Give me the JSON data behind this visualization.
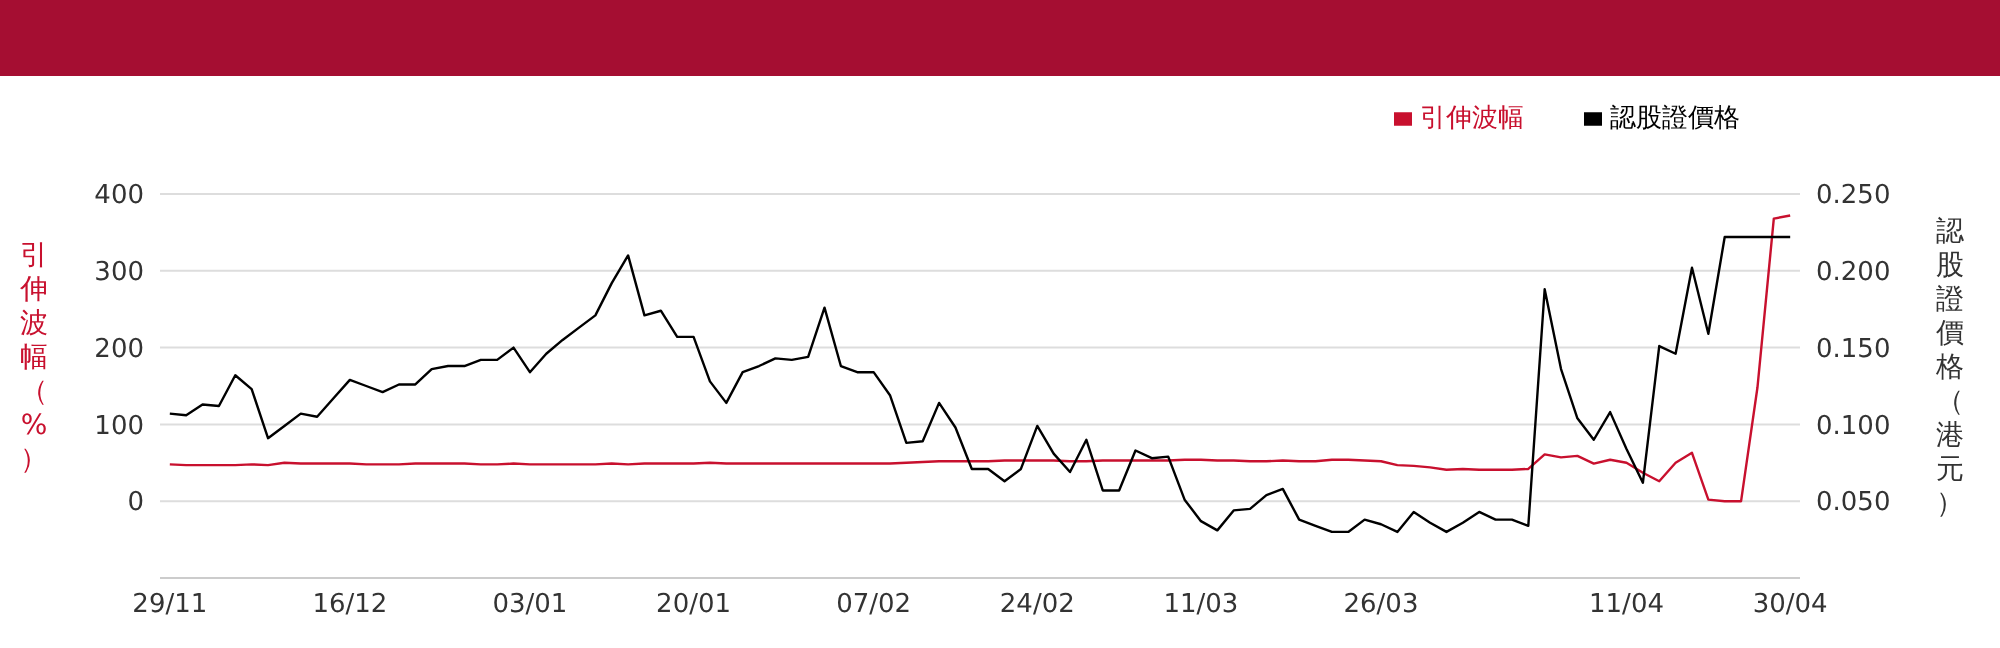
{
  "chart_data": {
    "type": "line",
    "ylabel": "引伸波幅（%）",
    "y2label": "認股證價格（港元）",
    "categories": [
      "29/11",
      null,
      null,
      null,
      null,
      null,
      null,
      null,
      null,
      null,
      null,
      "16/12",
      null,
      null,
      null,
      null,
      null,
      null,
      null,
      null,
      null,
      null,
      "03/01",
      null,
      null,
      null,
      null,
      null,
      null,
      null,
      null,
      null,
      "20/01",
      null,
      null,
      null,
      null,
      null,
      null,
      null,
      null,
      null,
      null,
      "07/02",
      null,
      null,
      null,
      null,
      null,
      null,
      null,
      null,
      null,
      "24/02",
      null,
      null,
      null,
      null,
      null,
      null,
      null,
      null,
      null,
      "11/03",
      null,
      null,
      null,
      null,
      null,
      null,
      null,
      null,
      null,
      null,
      "26/03",
      null,
      null,
      null,
      null,
      null,
      null,
      null,
      null,
      null,
      null,
      null,
      null,
      null,
      null,
      "11/04",
      null,
      null,
      null,
      null,
      null,
      null,
      null,
      null,
      null,
      "30/04"
    ],
    "series": [
      {
        "name": "引伸波幅",
        "color": "#c8102e",
        "values": [
          48,
          47,
          47,
          47,
          47,
          48,
          47,
          50,
          49,
          49,
          49,
          49,
          48,
          48,
          48,
          49,
          49,
          49,
          49,
          48,
          48,
          49,
          48,
          48,
          48,
          48,
          48,
          49,
          48,
          49,
          49,
          49,
          49,
          50,
          49,
          49,
          49,
          49,
          49,
          49,
          49,
          49,
          49,
          49,
          49,
          50,
          51,
          52,
          52,
          52,
          52,
          53,
          53,
          53,
          53,
          52,
          52,
          53,
          53,
          53,
          53,
          53,
          54,
          54,
          53,
          53,
          52,
          52,
          53,
          52,
          52,
          54,
          54,
          53,
          52,
          47,
          46,
          44,
          41,
          42,
          41,
          41,
          41,
          42,
          61,
          57,
          59,
          49,
          54,
          50,
          37,
          26,
          50,
          63,
          2,
          0,
          0,
          148,
          368,
          372
        ]
      },
      {
        "name": "認股證價格",
        "color": "#000000",
        "axis": "y2",
        "values": [
          0.107,
          0.106,
          0.113,
          0.112,
          0.132,
          0.123,
          0.091,
          0.099,
          0.107,
          0.105,
          0.117,
          0.129,
          0.125,
          0.121,
          0.126,
          0.126,
          0.136,
          0.138,
          0.138,
          0.142,
          0.142,
          0.15,
          0.134,
          0.146,
          0.155,
          0.163,
          0.171,
          0.192,
          0.21,
          0.171,
          0.174,
          0.157,
          0.157,
          0.128,
          0.114,
          0.134,
          0.138,
          0.143,
          0.142,
          0.144,
          0.176,
          0.138,
          0.134,
          0.134,
          0.119,
          0.088,
          0.089,
          0.114,
          0.098,
          0.071,
          0.071,
          0.063,
          0.071,
          0.099,
          0.081,
          0.069,
          0.09,
          0.057,
          0.057,
          0.083,
          0.078,
          0.079,
          0.051,
          0.037,
          0.031,
          0.044,
          0.045,
          0.054,
          0.058,
          0.038,
          0.034,
          0.03,
          0.03,
          0.038,
          0.035,
          0.03,
          0.043,
          0.036,
          0.03,
          0.036,
          0.043,
          0.038,
          0.038,
          0.034,
          0.188,
          0.136,
          0.104,
          0.09,
          0.108,
          0.084,
          0.062,
          0.151,
          0.146,
          0.202,
          0.159,
          0.222,
          0.222,
          0.222,
          0.222,
          0.222
        ]
      }
    ],
    "ylim": [
      -100,
      400
    ],
    "yticks": [
      0,
      100,
      200,
      300,
      400
    ],
    "y2lim": [
      0,
      0.25
    ],
    "y2ticks": [
      {
        "value": 0,
        "label": null
      },
      {
        "value": 0.05,
        "label": "0.050"
      },
      {
        "value": 0.1,
        "label": "0.100"
      },
      {
        "value": 0.15,
        "label": "0.150"
      },
      {
        "value": 0.2,
        "label": "0.200"
      },
      {
        "value": 0.25,
        "label": "0.250"
      }
    ],
    "grid": "y",
    "legend": "top right",
    "marker": "none",
    "line_style": "solid"
  }
}
